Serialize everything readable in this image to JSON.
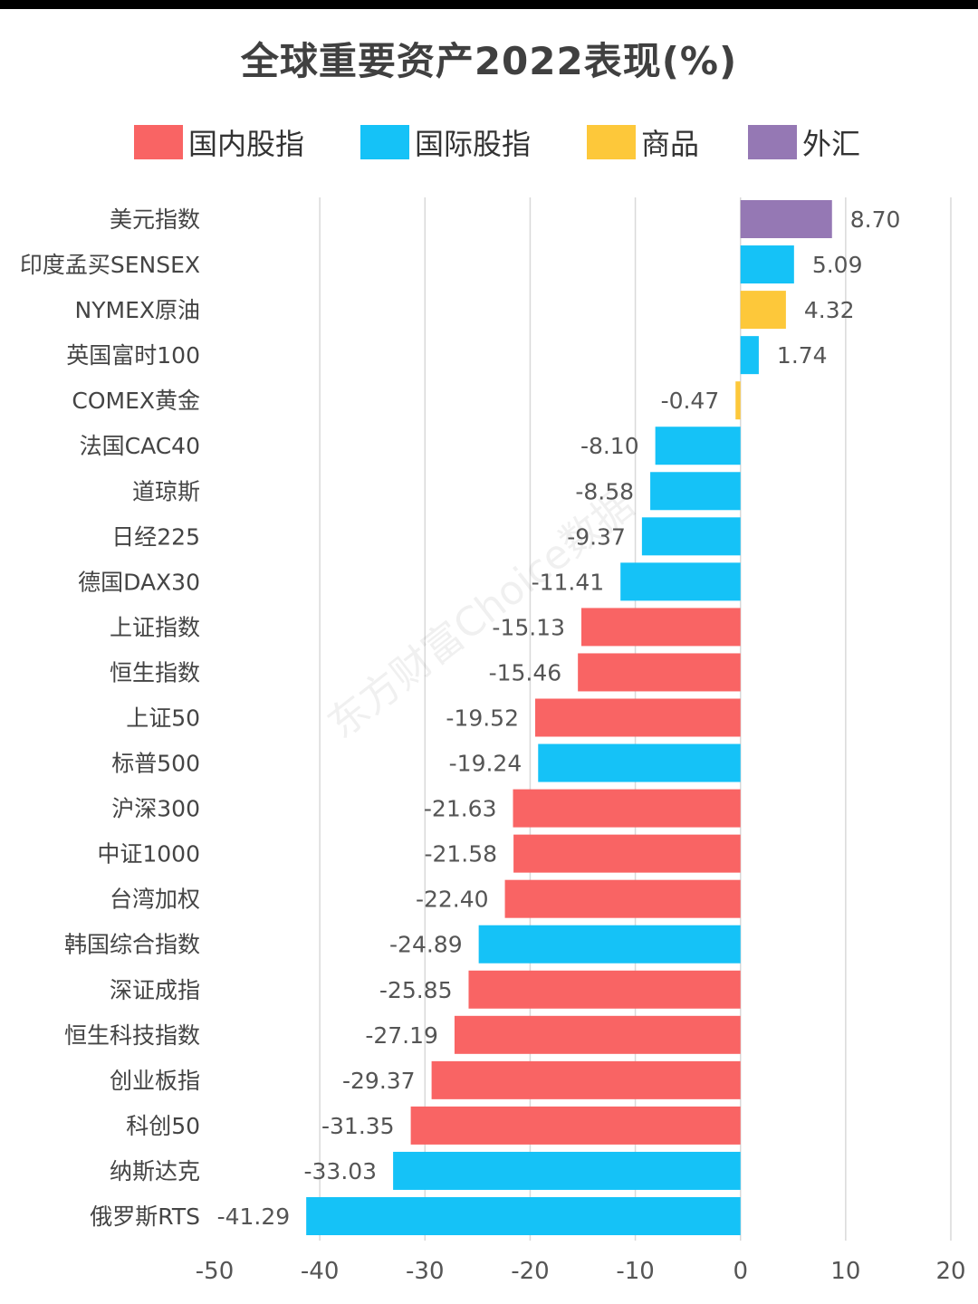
{
  "chart_data": {
    "type": "bar",
    "orientation": "horizontal",
    "title": "全球重要资产2022表现(%)",
    "watermark": "东方财富Choice数据",
    "xlim": [
      -50,
      20
    ],
    "xticks": [
      -50,
      -40,
      -30,
      -20,
      -10,
      0,
      10,
      20
    ],
    "grid": true,
    "legend_position": "top",
    "legend": [
      {
        "key": "domestic",
        "name": "国内股指",
        "color": "#f96464"
      },
      {
        "key": "international",
        "name": "国际股指",
        "color": "#15c2f7"
      },
      {
        "key": "commodity",
        "name": "商品",
        "color": "#fdc83a"
      },
      {
        "key": "fx",
        "name": "外汇",
        "color": "#9578b4"
      }
    ],
    "categories": [
      "美元指数",
      "印度孟买SENSEX",
      "NYMEX原油",
      "英国富时100",
      "COMEX黄金",
      "法国CAC40",
      "道琼斯",
      "日经225",
      "德国DAX30",
      "上证指数",
      "恒生指数",
      "上证50",
      "标普500",
      "沪深300",
      "中证1000",
      "台湾加权",
      "韩国综合指数",
      "深证成指",
      "恒生科技指数",
      "创业板指",
      "科创50",
      "纳斯达克",
      "俄罗斯RTS"
    ],
    "values": [
      8.7,
      5.09,
      4.32,
      1.74,
      -0.47,
      -8.1,
      -8.58,
      -9.37,
      -11.41,
      -15.13,
      -15.46,
      -19.52,
      -19.24,
      -21.63,
      -21.58,
      -22.4,
      -24.89,
      -25.85,
      -27.19,
      -29.37,
      -31.35,
      -33.03,
      -41.29
    ],
    "value_labels": [
      "8.70",
      "5.09",
      "4.32",
      "1.74",
      "-0.47",
      "-8.10",
      "-8.58",
      "-9.37",
      "-11.41",
      "-15.13",
      "-15.46",
      "-19.52",
      "-19.24",
      "-21.63",
      "-21.58",
      "-22.40",
      "-24.89",
      "-25.85",
      "-27.19",
      "-29.37",
      "-31.35",
      "-33.03",
      "-41.29"
    ],
    "groups": [
      "fx",
      "international",
      "commodity",
      "international",
      "commodity",
      "international",
      "international",
      "international",
      "international",
      "domestic",
      "domestic",
      "domestic",
      "international",
      "domestic",
      "domestic",
      "domestic",
      "international",
      "domestic",
      "domestic",
      "domestic",
      "domestic",
      "international",
      "international"
    ]
  }
}
